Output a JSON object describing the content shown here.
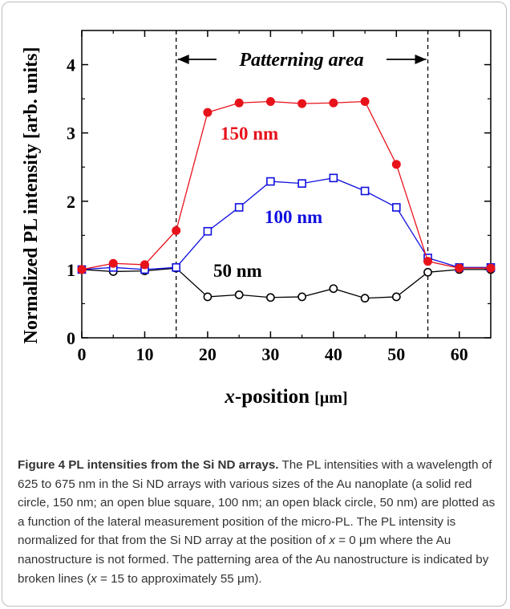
{
  "chart_data": {
    "type": "line",
    "xlabel_italic": "x",
    "xlabel_rest": "-position ",
    "xlabel_unit": "[μm]",
    "ylabel": "Normalized PL intensity [arb. units]",
    "xlim": [
      0,
      65
    ],
    "ylim": [
      0,
      4.5
    ],
    "x_ticks": [
      0,
      10,
      20,
      30,
      40,
      50,
      60
    ],
    "y_ticks": [
      0,
      1,
      2,
      3,
      4
    ],
    "vlines": [
      15,
      55
    ],
    "region_label": "Patterning area",
    "series": [
      {
        "name": "150 nm",
        "color": "#e8121b",
        "marker": "filled-circle",
        "x": [
          0,
          5,
          10,
          15,
          20,
          25,
          30,
          35,
          40,
          45,
          50,
          55,
          60,
          65
        ],
        "values": [
          1.0,
          1.09,
          1.07,
          1.57,
          3.3,
          3.44,
          3.46,
          3.43,
          3.44,
          3.46,
          2.54,
          1.12,
          1.02,
          1.02
        ]
      },
      {
        "name": "100 nm",
        "color": "#1010e0",
        "marker": "open-square",
        "x": [
          0,
          5,
          10,
          15,
          20,
          25,
          30,
          35,
          40,
          45,
          50,
          55,
          60,
          65
        ],
        "values": [
          1.0,
          1.03,
          1.0,
          1.03,
          1.56,
          1.91,
          2.29,
          2.26,
          2.34,
          2.15,
          1.91,
          1.17,
          1.03,
          1.03
        ]
      },
      {
        "name": "50 nm",
        "color": "#000000",
        "marker": "open-circle",
        "x": [
          0,
          5,
          10,
          15,
          20,
          25,
          30,
          35,
          40,
          45,
          50,
          55,
          60,
          65
        ],
        "values": [
          1.0,
          0.97,
          0.98,
          1.02,
          0.6,
          0.63,
          0.59,
          0.6,
          0.72,
          0.58,
          0.6,
          0.96,
          1.0,
          1.0
        ]
      }
    ]
  },
  "caption": {
    "title": "Figure 4 PL intensities from the Si ND arrays.",
    "body_part1": " The PL intensities with a wavelength of 625 to 675 nm in the Si ND arrays with various sizes of the Au nanoplate (a solid red circle, 150 nm; an open blue square, 100 nm; an open black circle, 50 nm) are plotted as a function of the lateral measurement position of the micro-PL. The PL intensity is normalized for that from the Si ND array at the position of ",
    "x_symbol": "x",
    "body_part2": " = 0 μm where the Au nanostructure is not formed. The patterning area of the Au nanostructure is indicated by broken lines (",
    "body_part3": " = 15 to approximately 55 μm)."
  }
}
